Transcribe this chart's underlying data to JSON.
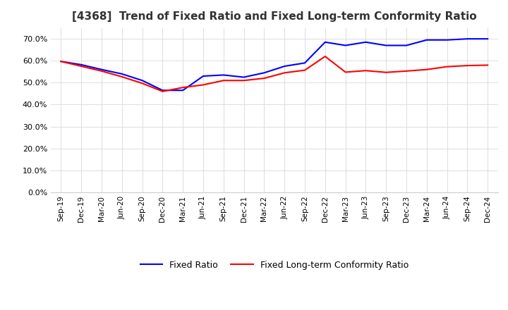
{
  "title": "[4368]  Trend of Fixed Ratio and Fixed Long-term Conformity Ratio",
  "x_labels": [
    "Sep-19",
    "Dec-19",
    "Mar-20",
    "Jun-20",
    "Sep-20",
    "Dec-20",
    "Mar-21",
    "Jun-21",
    "Sep-21",
    "Dec-21",
    "Mar-22",
    "Jun-22",
    "Sep-22",
    "Dec-22",
    "Mar-23",
    "Jun-23",
    "Sep-23",
    "Dec-23",
    "Mar-24",
    "Jun-24",
    "Sep-24",
    "Dec-24"
  ],
  "fixed_ratio": [
    0.597,
    0.582,
    0.56,
    0.54,
    0.51,
    0.465,
    0.465,
    0.53,
    0.535,
    0.525,
    0.545,
    0.575,
    0.59,
    0.685,
    0.67,
    0.685,
    0.67,
    0.67,
    0.695,
    0.695,
    0.7,
    0.7
  ],
  "fixed_lt_ratio": [
    0.597,
    0.575,
    0.553,
    0.527,
    0.497,
    0.46,
    0.478,
    0.49,
    0.51,
    0.51,
    0.52,
    0.545,
    0.557,
    0.62,
    0.548,
    0.555,
    0.547,
    0.553,
    0.56,
    0.573,
    0.578,
    0.58
  ],
  "ylim": [
    0.0,
    0.75
  ],
  "yticks": [
    0.0,
    0.1,
    0.2,
    0.3,
    0.4,
    0.5,
    0.6,
    0.7
  ],
  "fixed_ratio_color": "#0000FF",
  "fixed_lt_ratio_color": "#FF0000",
  "background_color": "#FFFFFF",
  "grid_color": "#DDDDDD",
  "legend_fixed": "Fixed Ratio",
  "legend_fixed_lt": "Fixed Long-term Conformity Ratio",
  "title_fontsize": 11
}
